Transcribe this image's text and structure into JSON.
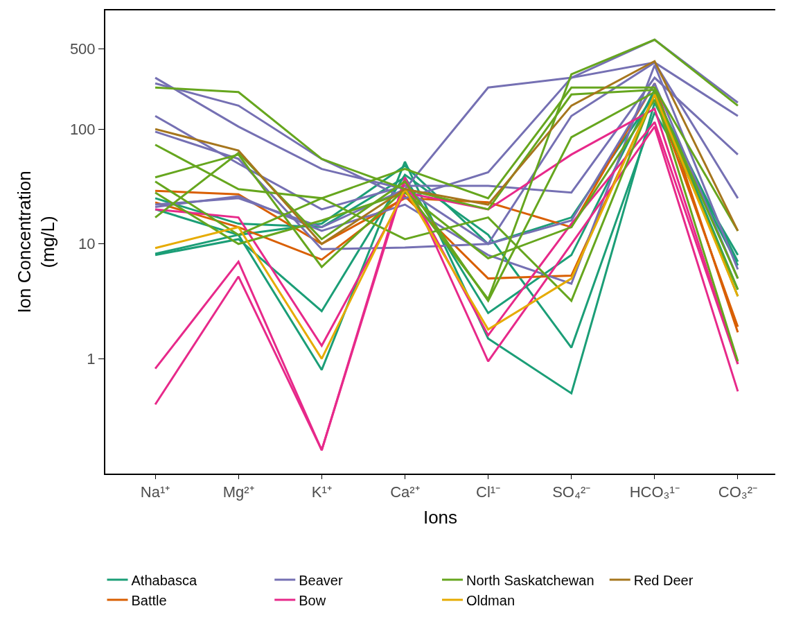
{
  "chart_data": {
    "type": "line",
    "xlabel": "Ions",
    "ylabel": "Ion Concentration\n(mg/L)",
    "categories": [
      "Na¹⁺",
      "Mg²⁺",
      "K¹⁺",
      "Ca²⁺",
      "Cl¹⁻",
      "SO₄²⁻",
      "HCO₃¹⁻",
      "CO₃²⁻"
    ],
    "log": "y",
    "ylim": [
      0.1,
      1080
    ],
    "yticks": [
      1,
      10,
      100,
      500
    ],
    "legend": "bottom",
    "marker": "none",
    "line_style": "solid",
    "series": [
      {
        "name": "Athabasca",
        "color": "#1b9e77",
        "values": [
          8.2,
          12,
          0.8,
          52,
          1.5,
          0.5,
          170,
          6.5
        ]
      },
      {
        "color": "#1b9e77",
        "values": [
          8,
          11,
          2.6,
          40,
          12,
          1.25,
          140,
          8
        ]
      },
      {
        "color": "#1b9e77",
        "values": [
          20,
          12,
          15,
          48,
          10,
          17,
          200,
          7
        ]
      },
      {
        "color": "#1b9e77",
        "values": [
          25,
          15,
          14,
          38,
          2.5,
          8,
          220,
          4
        ]
      },
      {
        "name": "Battle",
        "color": "#d95f02",
        "values": [
          29,
          27,
          10,
          25,
          23,
          14,
          250,
          1.7
        ]
      },
      {
        "color": "#d95f02",
        "values": [
          23,
          14,
          7.3,
          26,
          5,
          5.3,
          200,
          1.9
        ]
      },
      {
        "name": "Beaver",
        "color": "#7570b3",
        "values": [
          280,
          105,
          45,
          30,
          230,
          280,
          600,
          170
        ]
      },
      {
        "color": "#7570b3",
        "values": [
          250,
          160,
          55,
          25,
          42,
          280,
          380,
          130
        ]
      },
      {
        "color": "#7570b3",
        "values": [
          130,
          50,
          20,
          32,
          32,
          28,
          280,
          60
        ]
      },
      {
        "color": "#7570b3",
        "values": [
          95,
          55,
          9,
          9.3,
          10,
          130,
          380,
          25
        ]
      },
      {
        "color": "#7570b3",
        "values": [
          21,
          26,
          13,
          22,
          8,
          4.5,
          360,
          6
        ]
      },
      {
        "color": "#7570b3",
        "values": [
          22,
          25,
          14,
          30,
          10,
          16,
          250,
          5
        ]
      },
      {
        "name": "Bow",
        "color": "#e7298a",
        "values": [
          0.82,
          7,
          0.16,
          38,
          0.95,
          10,
          105,
          0.52
        ]
      },
      {
        "color": "#e7298a",
        "values": [
          0.4,
          5.2,
          0.16,
          35,
          1.6,
          15,
          115,
          0.9
        ]
      },
      {
        "color": "#e7298a",
        "values": [
          20,
          17,
          1.3,
          28,
          20,
          60,
          150,
          0.9
        ]
      },
      {
        "name": "North Saskatchewan",
        "color": "#66a61e",
        "values": [
          230,
          210,
          55,
          30,
          3.3,
          300,
          600,
          160
        ]
      },
      {
        "color": "#66a61e",
        "values": [
          73,
          30,
          25,
          45,
          25,
          230,
          230,
          13
        ]
      },
      {
        "color": "#66a61e",
        "values": [
          38,
          60,
          6.3,
          30,
          20,
          200,
          220,
          3.5
        ]
      },
      {
        "color": "#66a61e",
        "values": [
          35,
          12,
          25,
          11,
          17,
          3.2,
          200,
          0.95
        ]
      },
      {
        "color": "#66a61e",
        "values": [
          17,
          62,
          11,
          35,
          3.2,
          85,
          210,
          5
        ]
      },
      {
        "color": "#66a61e",
        "values": [
          28,
          10,
          16,
          28,
          7.5,
          14,
          180,
          4
        ]
      },
      {
        "name": "Oldman",
        "color": "#e6ab02",
        "values": [
          9.2,
          14,
          1.0,
          30,
          1.8,
          5,
          200,
          3.5
        ]
      },
      {
        "name": "Red Deer",
        "color": "#a6761d",
        "values": [
          100,
          65,
          10,
          30,
          22,
          160,
          390,
          13
        ]
      }
    ]
  }
}
